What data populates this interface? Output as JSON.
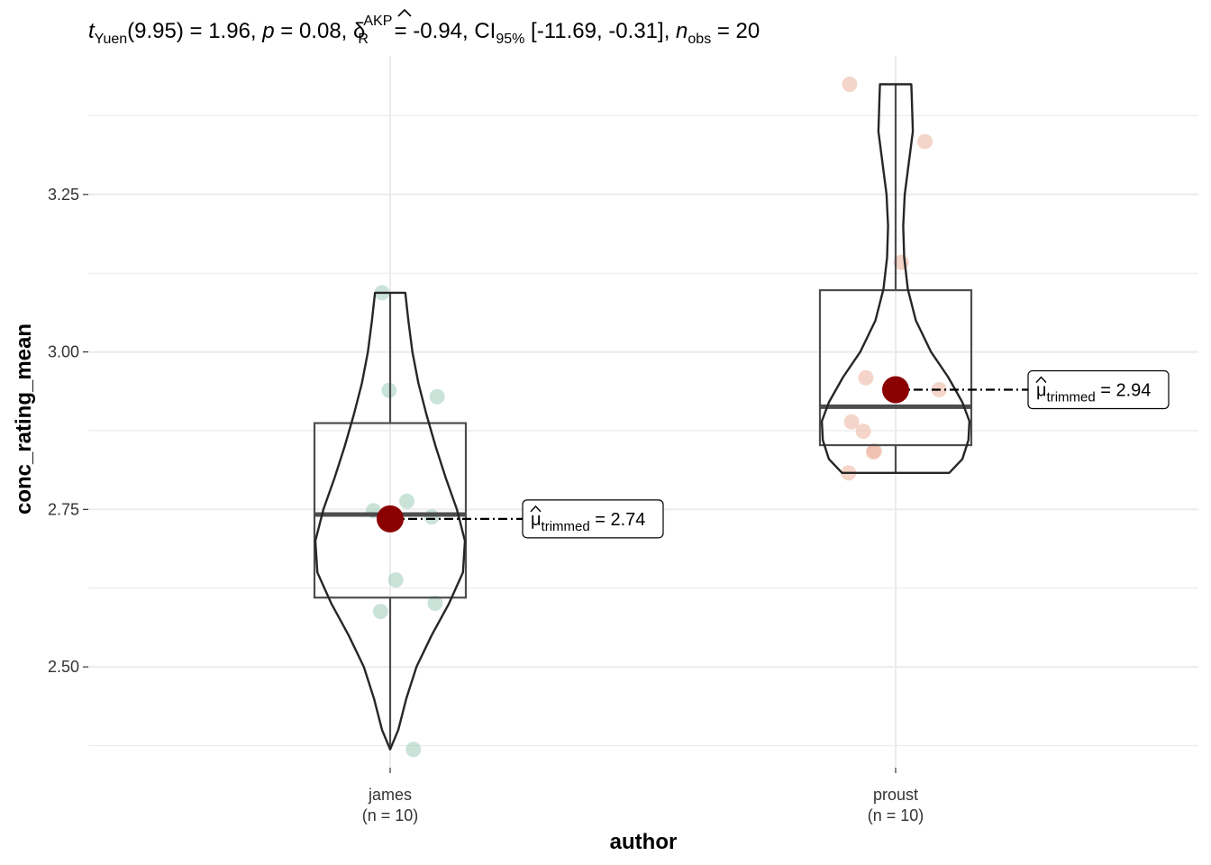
{
  "stat_subtitle": {
    "t_sym": "t",
    "t_sub": "Yuen",
    "df_part": "(9.95) = 1.96, ",
    "p_sym": "p",
    "p_part": " = 0.08, ",
    "delta_sym": "δ",
    "delta_sup": "AKP",
    "delta_sub": "R",
    "delta_part": " = -0.94, CI",
    "ci_sub": "95%",
    "ci_part": " [-11.69, -0.31], ",
    "n_sym": "n",
    "n_sub": "obs",
    "n_part": " = 20"
  },
  "chart_data": {
    "type": "violin-box-scatter",
    "xlabel": "author",
    "ylabel": "conc_rating_mean",
    "ylim": [
      2.34,
      3.47
    ],
    "yticks": [
      2.5,
      2.75,
      3.0,
      3.25
    ],
    "ytick_labels": [
      "2.50",
      "2.75",
      "3.00",
      "3.25"
    ],
    "grid": true,
    "mean_symbol": "μ",
    "mean_sub": "trimmed",
    "groups": [
      {
        "category": "james",
        "n_label": "(n = 10)",
        "color": "#9FCCBA",
        "points": [
          {
            "offset": -0.016,
            "y": 3.094
          },
          {
            "offset": -0.002,
            "y": 2.939
          },
          {
            "offset": 0.093,
            "y": 2.929
          },
          {
            "offset": 0.033,
            "y": 2.763
          },
          {
            "offset": -0.033,
            "y": 2.748
          },
          {
            "offset": 0.082,
            "y": 2.738
          },
          {
            "offset": 0.011,
            "y": 2.638
          },
          {
            "offset": 0.089,
            "y": 2.601
          },
          {
            "offset": -0.019,
            "y": 2.588
          },
          {
            "offset": 0.046,
            "y": 2.369
          }
        ],
        "box": {
          "q1": 2.61,
          "median": 2.742,
          "q3": 2.887,
          "whisker_low": 2.369,
          "whisker_high": 3.094
        },
        "violin": [
          [
            2.369,
            0.0
          ],
          [
            2.4,
            0.08
          ],
          [
            2.45,
            0.16
          ],
          [
            2.5,
            0.26
          ],
          [
            2.55,
            0.41
          ],
          [
            2.6,
            0.58
          ],
          [
            2.65,
            0.72
          ],
          [
            2.7,
            0.74
          ],
          [
            2.75,
            0.66
          ],
          [
            2.8,
            0.55
          ],
          [
            2.85,
            0.45
          ],
          [
            2.9,
            0.36
          ],
          [
            2.95,
            0.28
          ],
          [
            3.0,
            0.22
          ],
          [
            3.05,
            0.18
          ],
          [
            3.094,
            0.15
          ]
        ],
        "trimmed_mean": 2.735,
        "mean_value_label": " = 2.74"
      },
      {
        "category": "proust",
        "n_label": "(n = 10)",
        "color": "#EDB39C",
        "points": [
          {
            "offset": -0.091,
            "y": 3.425
          },
          {
            "offset": 0.058,
            "y": 3.334
          },
          {
            "offset": 0.011,
            "y": 3.142
          },
          {
            "offset": -0.059,
            "y": 2.959
          },
          {
            "offset": 0.086,
            "y": 2.94
          },
          {
            "offset": -0.087,
            "y": 2.889
          },
          {
            "offset": -0.064,
            "y": 2.874
          },
          {
            "offset": -0.042,
            "y": 2.843
          },
          {
            "offset": -0.044,
            "y": 2.841
          },
          {
            "offset": -0.093,
            "y": 2.808
          }
        ],
        "box": {
          "q1": 2.852,
          "median": 2.913,
          "q3": 3.098,
          "whisker_low": 2.808,
          "whisker_high": 3.425
        },
        "violin": [
          [
            2.808,
            0.53
          ],
          [
            2.83,
            0.66
          ],
          [
            2.86,
            0.72
          ],
          [
            2.89,
            0.73
          ],
          [
            2.92,
            0.66
          ],
          [
            2.96,
            0.52
          ],
          [
            3.0,
            0.35
          ],
          [
            3.05,
            0.2
          ],
          [
            3.1,
            0.12
          ],
          [
            3.15,
            0.085
          ],
          [
            3.2,
            0.075
          ],
          [
            3.25,
            0.09
          ],
          [
            3.3,
            0.13
          ],
          [
            3.35,
            0.17
          ],
          [
            3.4,
            0.16
          ],
          [
            3.425,
            0.155
          ]
        ],
        "trimmed_mean": 2.94,
        "mean_value_label": " = 2.94"
      }
    ]
  }
}
